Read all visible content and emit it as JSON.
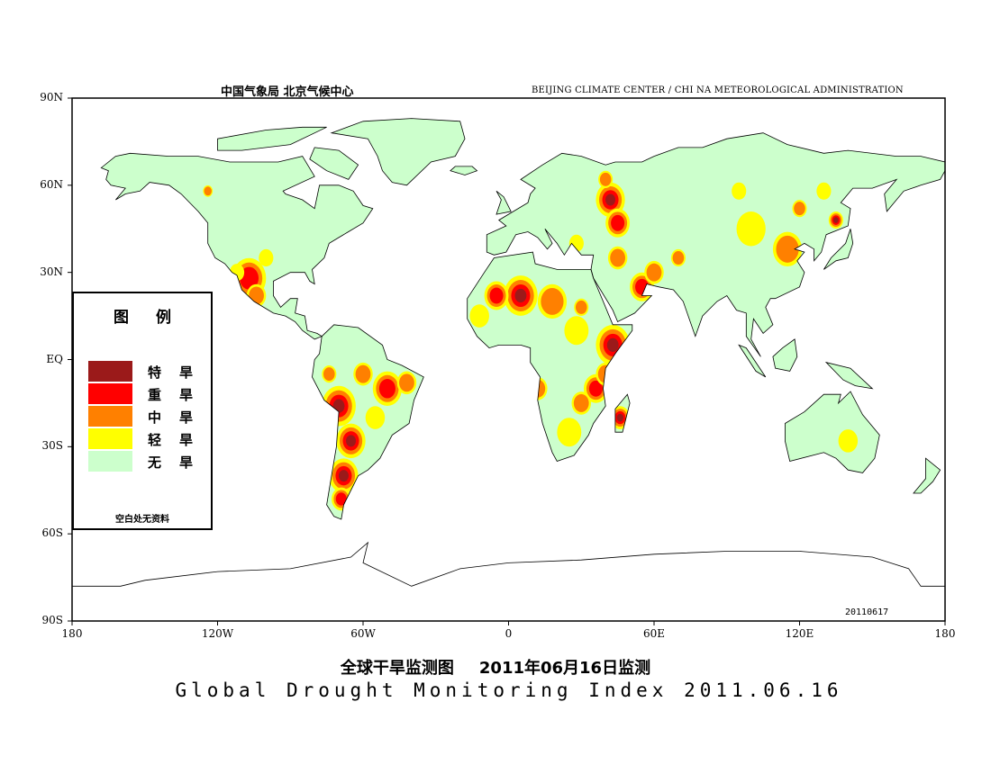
{
  "header": {
    "cn_agency": "中国气象局    北京气候中心",
    "en_agency": "BEIJING CLIMATE CENTER / CHI NA METEOROLOGICAL ADMINISTRATION"
  },
  "axes": {
    "lat_labels": [
      "90N",
      "60N",
      "30N",
      "EQ",
      "30S",
      "60S",
      "90S"
    ],
    "lat_values": [
      90,
      60,
      30,
      0,
      -30,
      -60,
      -90
    ],
    "lon_labels": [
      "180",
      "120W",
      "60W",
      "0",
      "60E",
      "120E",
      "180"
    ],
    "lon_values": [
      -180,
      -120,
      -60,
      0,
      60,
      120,
      180
    ]
  },
  "legend": {
    "title": "图例",
    "items": [
      {
        "label": "特旱",
        "color": "#9b1a1a"
      },
      {
        "label": "重旱",
        "color": "#ff0000"
      },
      {
        "label": "中旱",
        "color": "#ff8000"
      },
      {
        "label": "轻旱",
        "color": "#ffff00"
      },
      {
        "label": "无旱",
        "color": "#ccffcc"
      }
    ],
    "note": "空白处无资料"
  },
  "stamp": "20110617",
  "title": {
    "cn_main": "全球干旱监测图",
    "cn_date": "2011年06月16日监测",
    "en": "Global Drought Monitoring Index  2011.06.16"
  }
}
